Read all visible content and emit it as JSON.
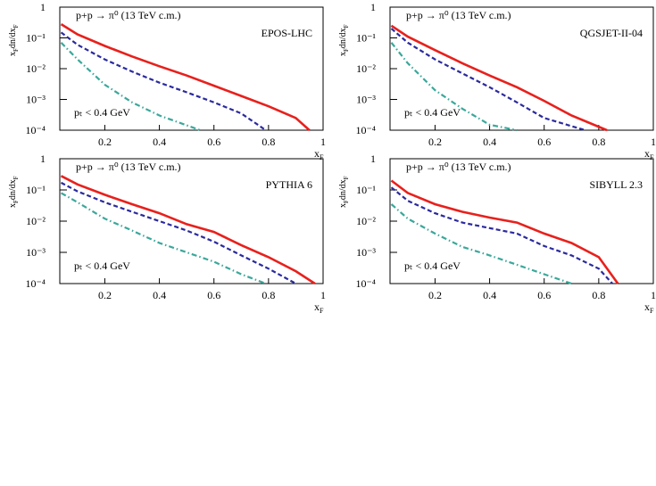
{
  "chart_data": [
    {
      "type": "line",
      "title": "p+p → π⁰ (13 TeV c.m.)",
      "model": "EPOS-LHC",
      "annotation": "pₜ < 0.4 GeV",
      "xlabel": [
        "x",
        "F"
      ],
      "ylabel": [
        "x",
        "F",
        "dn/dx",
        "F"
      ],
      "log_y": true,
      "xlim": [
        0.035,
        1
      ],
      "ylim": [
        0.0001,
        1
      ],
      "xticks": [
        0.2,
        0.4,
        0.6,
        0.8,
        1
      ],
      "yticks": [
        {
          "value": 0.0001,
          "label": "10⁻⁴"
        },
        {
          "value": 0.001,
          "label": "10⁻³"
        },
        {
          "value": 0.01,
          "label": "10⁻²"
        },
        {
          "value": 0.1,
          "label": "10⁻¹"
        },
        1
      ],
      "series": [
        {
          "color": "#e8201c",
          "style": "solid",
          "x": [
            0.04,
            0.1,
            0.2,
            0.3,
            0.4,
            0.5,
            0.6,
            0.7,
            0.8,
            0.9,
            0.95
          ],
          "values": [
            0.28,
            0.13,
            0.055,
            0.025,
            0.012,
            0.006,
            0.0028,
            0.0013,
            0.0006,
            0.00025,
            0.0001
          ]
        },
        {
          "color": "#2a2a9e",
          "style": "dashed",
          "x": [
            0.04,
            0.1,
            0.2,
            0.3,
            0.4,
            0.5,
            0.6,
            0.7,
            0.79
          ],
          "values": [
            0.15,
            0.06,
            0.02,
            0.008,
            0.0035,
            0.0017,
            0.0008,
            0.00035,
            0.0001
          ]
        },
        {
          "color": "#3aa89a",
          "style": "dashdot",
          "x": [
            0.04,
            0.1,
            0.2,
            0.3,
            0.4,
            0.55
          ],
          "values": [
            0.07,
            0.02,
            0.003,
            0.0008,
            0.0003,
            0.0001
          ]
        }
      ]
    },
    {
      "type": "line",
      "title": "p+p → π⁰ (13 TeV c.m.)",
      "model": "QGSJET-II-04",
      "annotation": "pₜ < 0.4 GeV",
      "xlabel": [
        "x",
        "F"
      ],
      "ylabel": [
        "x",
        "F",
        "dn/dx",
        "F"
      ],
      "log_y": true,
      "xlim": [
        0.035,
        1
      ],
      "ylim": [
        0.0001,
        1
      ],
      "xticks": [
        0.2,
        0.4,
        0.6,
        0.8,
        1
      ],
      "yticks": [
        {
          "value": 0.0001,
          "label": "10⁻⁴"
        },
        {
          "value": 0.001,
          "label": "10⁻³"
        },
        {
          "value": 0.01,
          "label": "10⁻²"
        },
        {
          "value": 0.1,
          "label": "10⁻¹"
        },
        1
      ],
      "series": [
        {
          "color": "#e8201c",
          "style": "solid",
          "x": [
            0.04,
            0.1,
            0.2,
            0.3,
            0.4,
            0.5,
            0.6,
            0.7,
            0.83
          ],
          "values": [
            0.25,
            0.11,
            0.04,
            0.015,
            0.006,
            0.0025,
            0.0009,
            0.0003,
            0.0001
          ]
        },
        {
          "color": "#2a2a9e",
          "style": "dashed",
          "x": [
            0.04,
            0.1,
            0.2,
            0.3,
            0.4,
            0.5,
            0.6,
            0.75
          ],
          "values": [
            0.2,
            0.07,
            0.02,
            0.007,
            0.0025,
            0.0008,
            0.00025,
            0.0001
          ]
        },
        {
          "color": "#3aa89a",
          "style": "dashdot",
          "x": [
            0.04,
            0.1,
            0.2,
            0.3,
            0.4,
            0.5
          ],
          "values": [
            0.07,
            0.015,
            0.002,
            0.0005,
            0.00015,
            0.0001
          ]
        }
      ]
    },
    {
      "type": "line",
      "title": "p+p → π⁰ (13 TeV c.m.)",
      "model": "PYTHIA 6",
      "annotation": "pₜ < 0.4 GeV",
      "xlabel": [
        "x",
        "F"
      ],
      "ylabel": [
        "x",
        "F",
        "dn/dx",
        "F"
      ],
      "log_y": true,
      "xlim": [
        0.035,
        1
      ],
      "ylim": [
        0.0001,
        1
      ],
      "xticks": [
        0.2,
        0.4,
        0.6,
        0.8,
        1
      ],
      "yticks": [
        {
          "value": 0.0001,
          "label": "10⁻⁴"
        },
        {
          "value": 0.001,
          "label": "10⁻³"
        },
        {
          "value": 0.01,
          "label": "10⁻²"
        },
        {
          "value": 0.1,
          "label": "10⁻¹"
        },
        1
      ],
      "series": [
        {
          "color": "#e8201c",
          "style": "solid",
          "x": [
            0.04,
            0.1,
            0.2,
            0.3,
            0.4,
            0.5,
            0.6,
            0.7,
            0.8,
            0.9,
            0.97
          ],
          "values": [
            0.28,
            0.15,
            0.07,
            0.035,
            0.018,
            0.008,
            0.0045,
            0.0017,
            0.0007,
            0.00025,
            0.0001
          ]
        },
        {
          "color": "#2a2a9e",
          "style": "dashed",
          "x": [
            0.04,
            0.1,
            0.2,
            0.3,
            0.4,
            0.5,
            0.6,
            0.7,
            0.8,
            0.9
          ],
          "values": [
            0.17,
            0.09,
            0.04,
            0.02,
            0.01,
            0.005,
            0.0022,
            0.0008,
            0.0003,
            0.0001
          ]
        },
        {
          "color": "#3aa89a",
          "style": "dashdot",
          "x": [
            0.04,
            0.1,
            0.2,
            0.3,
            0.4,
            0.5,
            0.6,
            0.7,
            0.79
          ],
          "values": [
            0.08,
            0.04,
            0.012,
            0.005,
            0.002,
            0.001,
            0.0005,
            0.0002,
            0.0001
          ]
        }
      ]
    },
    {
      "type": "line",
      "title": "p+p → π⁰ (13 TeV c.m.)",
      "model": "SIBYLL 2.3",
      "annotation": "pₜ < 0.4 GeV",
      "xlabel": [
        "x",
        "F"
      ],
      "ylabel": [
        "x",
        "F",
        "dn/dx",
        "F"
      ],
      "log_y": true,
      "xlim": [
        0.035,
        1
      ],
      "ylim": [
        0.0001,
        1
      ],
      "xticks": [
        0.2,
        0.4,
        0.6,
        0.8,
        1
      ],
      "yticks": [
        {
          "value": 0.0001,
          "label": "10⁻⁴"
        },
        {
          "value": 0.001,
          "label": "10⁻³"
        },
        {
          "value": 0.01,
          "label": "10⁻²"
        },
        {
          "value": 0.1,
          "label": "10⁻¹"
        },
        1
      ],
      "series": [
        {
          "color": "#e8201c",
          "style": "solid",
          "x": [
            0.04,
            0.1,
            0.2,
            0.3,
            0.4,
            0.5,
            0.6,
            0.7,
            0.8,
            0.87
          ],
          "values": [
            0.2,
            0.08,
            0.035,
            0.02,
            0.013,
            0.009,
            0.004,
            0.002,
            0.0007,
            0.0001
          ]
        },
        {
          "color": "#2a2a9e",
          "style": "dashed",
          "x": [
            0.04,
            0.1,
            0.2,
            0.3,
            0.4,
            0.5,
            0.6,
            0.7,
            0.8,
            0.85
          ],
          "values": [
            0.12,
            0.045,
            0.018,
            0.009,
            0.006,
            0.004,
            0.0016,
            0.0008,
            0.0003,
            0.0001
          ]
        },
        {
          "color": "#3aa89a",
          "style": "dashdot",
          "x": [
            0.04,
            0.1,
            0.2,
            0.3,
            0.4,
            0.5,
            0.6,
            0.7
          ],
          "values": [
            0.035,
            0.012,
            0.004,
            0.0015,
            0.0008,
            0.0004,
            0.0002,
            0.0001
          ]
        }
      ]
    }
  ]
}
